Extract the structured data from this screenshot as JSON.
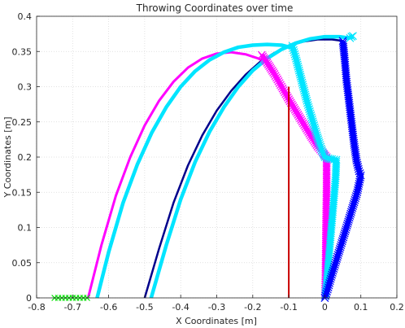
{
  "chart_data": {
    "type": "line",
    "title": "Throwing Coordinates over time",
    "xlabel": "X Coordinates [m]",
    "ylabel": "Y Coordinates [m]",
    "xlim": [
      -0.8,
      0.2
    ],
    "ylim": [
      0,
      0.4
    ],
    "xticks": [
      -0.8,
      -0.7,
      -0.6,
      -0.5,
      -0.4,
      -0.3,
      -0.2,
      -0.1,
      0,
      0.1,
      0.2
    ],
    "yticks": [
      0,
      0.05,
      0.1,
      0.15,
      0.2,
      0.25,
      0.3,
      0.35,
      0.4
    ],
    "grid": true,
    "series": [
      {
        "color": "#ff00ff",
        "style": "line",
        "x": [
          -0.657,
          -0.62,
          -0.58,
          -0.54,
          -0.5,
          -0.46,
          -0.42,
          -0.38,
          -0.34,
          -0.3,
          -0.26,
          -0.22,
          -0.19,
          -0.17
        ],
        "y": [
          0,
          0.075,
          0.145,
          0.2,
          0.245,
          0.28,
          0.307,
          0.327,
          0.34,
          0.347,
          0.349,
          0.346,
          0.341,
          0.337
        ]
      },
      {
        "color": "#00e5ff",
        "style": "line",
        "x": [
          -0.632,
          -0.6,
          -0.56,
          -0.52,
          -0.48,
          -0.44,
          -0.4,
          -0.36,
          -0.32,
          -0.28,
          -0.24,
          -0.2,
          -0.16,
          -0.12,
          -0.09
        ],
        "y": [
          0,
          0.065,
          0.135,
          0.19,
          0.235,
          0.271,
          0.3,
          0.322,
          0.338,
          0.349,
          0.356,
          0.359,
          0.36,
          0.359,
          0.355
        ]
      },
      {
        "color": "#00008b",
        "style": "line",
        "x": [
          -0.5,
          -0.46,
          -0.42,
          -0.38,
          -0.34,
          -0.3,
          -0.26,
          -0.22,
          -0.18,
          -0.14,
          -0.1,
          -0.06,
          -0.02,
          0.02,
          0.05
        ],
        "y": [
          0,
          0.07,
          0.135,
          0.188,
          0.231,
          0.266,
          0.294,
          0.317,
          0.335,
          0.348,
          0.358,
          0.364,
          0.367,
          0.367,
          0.365
        ]
      },
      {
        "color": "#00e5ff",
        "style": "line",
        "x": [
          -0.482,
          -0.44,
          -0.4,
          -0.36,
          -0.32,
          -0.28,
          -0.24,
          -0.2,
          -0.16,
          -0.12,
          -0.08,
          -0.04,
          0,
          0.04,
          0.07
        ],
        "y": [
          0,
          0.075,
          0.14,
          0.193,
          0.236,
          0.271,
          0.3,
          0.323,
          0.34,
          0.353,
          0.362,
          0.368,
          0.371,
          0.371,
          0.369
        ]
      },
      {
        "color": "#ff00ff",
        "style": "marker-x",
        "x": [
          -0.175,
          -0.16,
          -0.14,
          -0.12,
          -0.1,
          -0.08,
          -0.06,
          -0.04,
          -0.02,
          0.005,
          0.005,
          0.004,
          0.003,
          0.002,
          0.001,
          0
        ],
        "y": [
          0.345,
          0.334,
          0.318,
          0.3,
          0.282,
          0.265,
          0.248,
          0.231,
          0.215,
          0.2,
          0.16,
          0.12,
          0.08,
          0.04,
          0.01,
          0
        ]
      },
      {
        "color": "#00e5ff",
        "style": "marker-x",
        "x": [
          -0.09,
          -0.08,
          -0.07,
          -0.06,
          -0.05,
          -0.04,
          -0.03,
          -0.02,
          -0.01,
          0,
          0.01,
          0.02,
          0.032,
          0.03,
          0.025,
          0.02,
          0.015,
          0.01,
          0.005,
          0
        ],
        "y": [
          0.358,
          0.34,
          0.32,
          0.3,
          0.28,
          0.262,
          0.245,
          0.228,
          0.212,
          0.2,
          0.198,
          0.197,
          0.196,
          0.17,
          0.14,
          0.11,
          0.08,
          0.05,
          0.02,
          0
        ]
      },
      {
        "color": "#0000ff",
        "style": "marker-x",
        "x": [
          0.05,
          0.055,
          0.06,
          0.067,
          0.074,
          0.081,
          0.088,
          0.095,
          0.1,
          0.09,
          0.075,
          0.06,
          0.045,
          0.03,
          0.018,
          0.008,
          0
        ],
        "y": [
          0.365,
          0.34,
          0.31,
          0.28,
          0.25,
          0.22,
          0.195,
          0.18,
          0.174,
          0.15,
          0.125,
          0.1,
          0.075,
          0.05,
          0.03,
          0.012,
          0
        ]
      },
      {
        "color": "#00e5ff",
        "style": "marker-x",
        "x": [
          0.07,
          0.074,
          0.078
        ],
        "y": [
          0.369,
          0.371,
          0.372
        ]
      },
      {
        "color": "#00e000",
        "style": "marker-x",
        "x": [
          -0.75,
          -0.74,
          -0.73,
          -0.72,
          -0.71,
          -0.7,
          -0.69,
          -0.68,
          -0.67,
          -0.66
        ],
        "y": [
          0,
          0,
          0,
          0,
          0,
          0,
          0,
          0,
          0,
          0
        ]
      },
      {
        "color": "#c80000",
        "style": "line",
        "x": [
          -0.1,
          -0.1
        ],
        "y": [
          0,
          0.3
        ]
      }
    ]
  }
}
